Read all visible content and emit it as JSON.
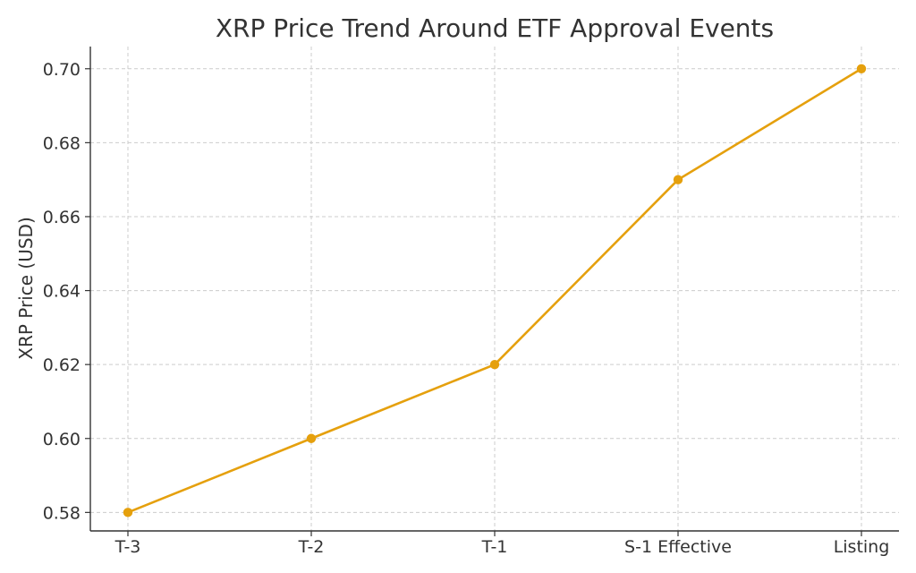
{
  "chart_data": {
    "type": "line",
    "title": "XRP Price Trend Around ETF Approval Events",
    "xlabel": "",
    "ylabel": "XRP Price (USD)",
    "categories": [
      "T-3",
      "T-2",
      "T-1",
      "S-1 Effective",
      "Listing"
    ],
    "series": [
      {
        "values": [
          0.58,
          0.6,
          0.62,
          0.67,
          0.7
        ],
        "color": "#E5A00D",
        "marker": "circle"
      }
    ],
    "ylim": [
      0.575,
      0.706
    ],
    "yticks": [
      0.58,
      0.6,
      0.62,
      0.64,
      0.66,
      0.68,
      0.7
    ],
    "ytick_labels": [
      "0.58",
      "0.60",
      "0.62",
      "0.64",
      "0.66",
      "0.68",
      "0.70"
    ],
    "grid": true,
    "legend": "none"
  }
}
